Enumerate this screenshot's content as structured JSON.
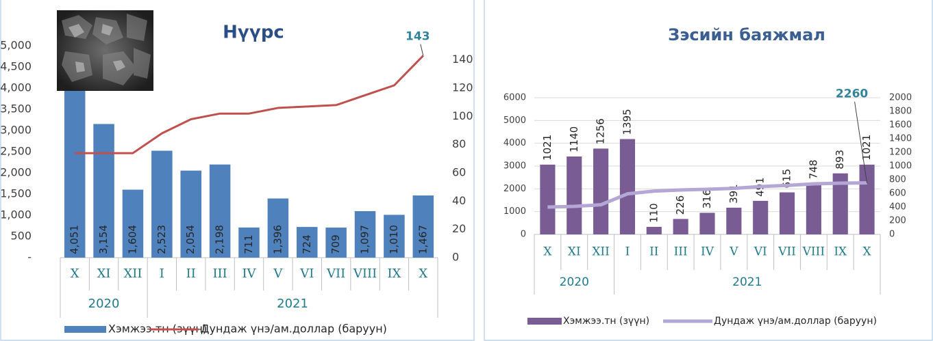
{
  "chart_data": [
    {
      "type": "bar",
      "title": "Нүүрс",
      "categories": [
        "X",
        "XI",
        "XII",
        "I",
        "II",
        "III",
        "IV",
        "V",
        "VI",
        "VII",
        "VIII",
        "IX",
        "X"
      ],
      "years": [
        "2020",
        null,
        null,
        "2021",
        null,
        null,
        null,
        null,
        null,
        null,
        null,
        null,
        null
      ],
      "series": [
        {
          "name": "Хэмжээ.тн (зүүн)",
          "type": "bar",
          "axis": "y",
          "color": "#4f81bd",
          "values": [
            4051,
            3154,
            1604,
            2523,
            2054,
            2198,
            711,
            1396,
            724,
            709,
            1097,
            1010,
            1467
          ],
          "value_labels": [
            "4,051",
            "3,154",
            "1,604",
            "2,523",
            "2,054",
            "2,198",
            "711",
            "1,396",
            "724",
            "709",
            "1,097",
            "1,010",
            "1,467"
          ]
        },
        {
          "name": "Дундаж үнэ/ам.доллар (баруун)",
          "type": "line",
          "axis": "y2",
          "color": "#c0504d",
          "values": [
            74,
            74,
            74,
            88,
            98,
            102,
            102,
            106,
            107,
            108,
            115,
            122,
            143
          ],
          "value_labels": [
            null,
            null,
            null,
            null,
            null,
            null,
            null,
            null,
            null,
            null,
            null,
            null,
            "143"
          ]
        }
      ],
      "ylim": [
        0,
        5000
      ],
      "yticks": [
        {
          "value": 0,
          "label": "-"
        },
        500,
        {
          "value": 1000,
          "label": "1,000"
        },
        {
          "value": 1500,
          "label": "1,500"
        },
        {
          "value": 2000,
          "label": "2,000"
        },
        {
          "value": 2500,
          "label": "2,500"
        },
        {
          "value": 3000,
          "label": "3,000"
        },
        {
          "value": 3500,
          "label": "3,500"
        },
        {
          "value": 4000,
          "label": "4,000"
        },
        {
          "value": 4500,
          "label": "4,500"
        },
        {
          "value": 5000,
          "label": "5,000"
        }
      ],
      "y2lim": [
        0,
        150
      ],
      "y2ticks": [
        0,
        20,
        40,
        60,
        80,
        100,
        120,
        140
      ],
      "grid": false
    },
    {
      "type": "bar",
      "title": "Зэсийн баяжмал",
      "categories": [
        "X",
        "XI",
        "XII",
        "I",
        "II",
        "III",
        "IV",
        "V",
        "VI",
        "VII",
        "VIII",
        "IX",
        "X"
      ],
      "years": [
        "2020",
        null,
        null,
        "2021",
        null,
        null,
        null,
        null,
        null,
        null,
        null,
        null,
        null
      ],
      "series": [
        {
          "name": "Хэмжээ.тн (зүүн)",
          "type": "bar",
          "axis": "y2",
          "color": "#7a5c95",
          "values": [
            1021,
            1140,
            1256,
            1395,
            110,
            226,
            316,
            391,
            491,
            615,
            748,
            893,
            1021
          ]
        },
        {
          "name": "Дундаж үнэ/ам.доллар (баруун)",
          "type": "line",
          "axis": "y",
          "color": "#b4a7d6",
          "values": [
            1200,
            1230,
            1300,
            1780,
            1900,
            1950,
            1980,
            2020,
            2100,
            2150,
            2220,
            2250,
            2260
          ],
          "value_labels": [
            null,
            null,
            null,
            null,
            null,
            null,
            null,
            null,
            null,
            null,
            null,
            null,
            "2260"
          ]
        }
      ],
      "ylim": [
        0,
        6000
      ],
      "yticks": [
        0,
        1000,
        2000,
        3000,
        4000,
        5000,
        6000
      ],
      "y2lim": [
        0,
        2000
      ],
      "y2ticks": [
        0,
        200,
        400,
        600,
        800,
        1000,
        1200,
        1400,
        1600,
        1800,
        2000
      ],
      "grid": true
    }
  ]
}
